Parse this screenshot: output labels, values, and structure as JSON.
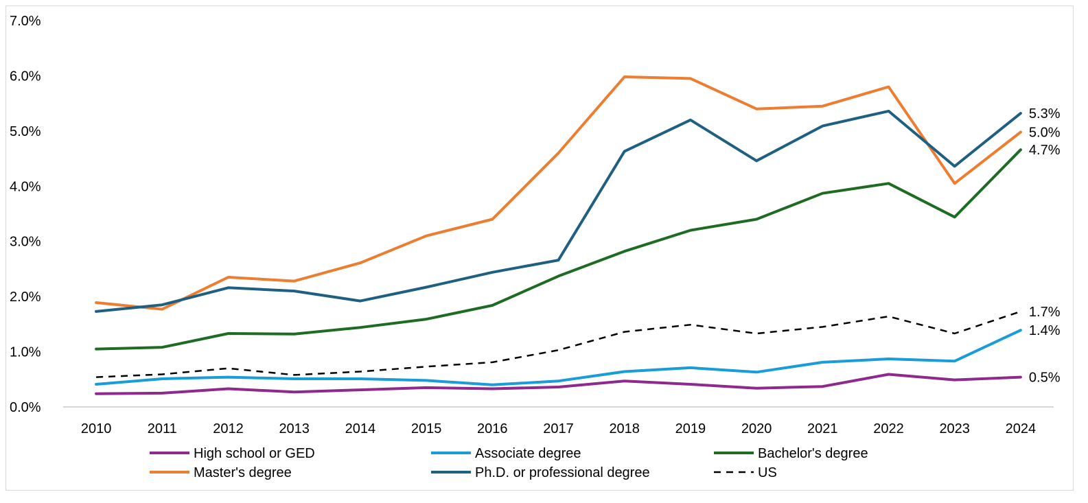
{
  "chart_data": {
    "type": "line",
    "title": "",
    "xlabel": "",
    "ylabel": "",
    "ylim": [
      0,
      7
    ],
    "yticks": [
      0,
      1,
      2,
      3,
      4,
      5,
      6,
      7
    ],
    "ytick_labels": [
      "0.0%",
      "1.0%",
      "2.0%",
      "3.0%",
      "4.0%",
      "5.0%",
      "6.0%",
      "7.0%"
    ],
    "categories": [
      "2010",
      "2011",
      "2012",
      "2013",
      "2014",
      "2015",
      "2016",
      "2017",
      "2018",
      "2019",
      "2020",
      "2021",
      "2022",
      "2023",
      "2024"
    ],
    "grid": false,
    "legend_position": "bottom",
    "series": [
      {
        "name": "High school or GED",
        "color": "#8e2a8e",
        "dashed": false,
        "end_label": "0.5%",
        "values": [
          0.24,
          0.25,
          0.33,
          0.27,
          0.31,
          0.35,
          0.33,
          0.36,
          0.47,
          0.41,
          0.34,
          0.37,
          0.59,
          0.49,
          0.54
        ]
      },
      {
        "name": "Associate degree",
        "color": "#1a9cd8",
        "dashed": false,
        "end_label": "1.4%",
        "values": [
          0.41,
          0.51,
          0.54,
          0.51,
          0.51,
          0.48,
          0.4,
          0.47,
          0.64,
          0.71,
          0.63,
          0.81,
          0.87,
          0.83,
          1.39
        ]
      },
      {
        "name": "Bachelor's degree",
        "color": "#1e6b23",
        "dashed": false,
        "end_label": "4.7%",
        "values": [
          1.05,
          1.08,
          1.33,
          1.32,
          1.44,
          1.59,
          1.84,
          2.37,
          2.82,
          3.2,
          3.4,
          3.87,
          4.05,
          3.44,
          4.66
        ]
      },
      {
        "name": "Master's degree",
        "color": "#ed7d31",
        "dashed": false,
        "end_label": "5.0%",
        "values": [
          1.89,
          1.77,
          2.35,
          2.28,
          2.61,
          3.1,
          3.4,
          4.6,
          5.98,
          5.95,
          5.4,
          5.45,
          5.8,
          4.05,
          4.98
        ]
      },
      {
        "name": "Ph.D. or professional degree",
        "color": "#1f5f82",
        "dashed": false,
        "end_label": "5.3%",
        "values": [
          1.73,
          1.85,
          2.16,
          2.1,
          1.92,
          2.17,
          2.44,
          2.66,
          4.63,
          5.2,
          4.46,
          5.09,
          5.36,
          4.36,
          5.32
        ]
      },
      {
        "name": "US",
        "color": "#000000",
        "dashed": true,
        "end_label": "1.7%",
        "values": [
          0.54,
          0.59,
          0.7,
          0.58,
          0.64,
          0.73,
          0.81,
          1.03,
          1.36,
          1.49,
          1.33,
          1.45,
          1.64,
          1.33,
          1.73
        ]
      }
    ],
    "legend": [
      "High school or GED",
      "Associate degree",
      "Bachelor's degree",
      "Master's degree",
      "Ph.D. or professional degree",
      "US"
    ]
  }
}
